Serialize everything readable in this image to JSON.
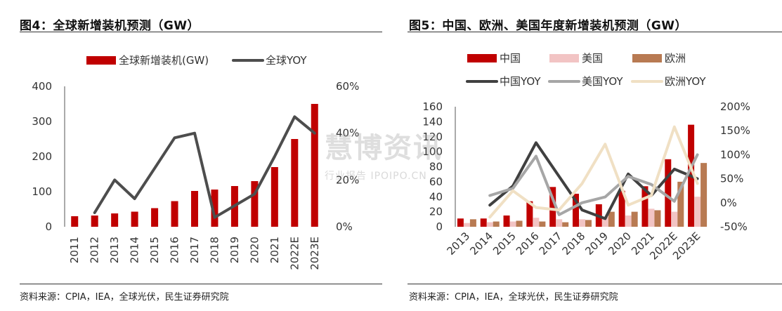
{
  "figure4": {
    "title": "图4：全球新增装机预测（GW）",
    "source": "资料来源：CPIA，IEA，全球光伏，民生证券研究院"
  },
  "figure5": {
    "title": "图5：中国、欧洲、美国年度新增装机预测（GW）",
    "source": "资料来源：CPIA，IEA，全球光伏，民生证券研究院"
  },
  "watermark": {
    "main": "慧博资讯",
    "sub": "行业报告 IPOIPO.CN"
  },
  "chart_data": [
    {
      "type": "bar+line",
      "categories": [
        "2011",
        "2012",
        "2013",
        "2014",
        "2015",
        "2016",
        "2017",
        "2018",
        "2019",
        "2020",
        "2021",
        "2022E",
        "2023E"
      ],
      "series": [
        {
          "name": "全球新增装机(GW)",
          "type": "bar",
          "axis": "left",
          "color": "#c00000",
          "values": [
            30,
            32,
            38,
            43,
            53,
            73,
            102,
            106,
            116,
            130,
            170,
            250,
            350
          ]
        },
        {
          "name": "全球YOY",
          "type": "line",
          "axis": "right",
          "color": "#4d4d4d",
          "values": [
            null,
            6,
            20,
            12,
            25,
            38,
            40,
            4,
            9,
            14,
            30,
            47,
            40
          ]
        }
      ],
      "ylim": [
        0,
        400
      ],
      "yticks": [
        "0",
        "100",
        "200",
        "300",
        "400"
      ],
      "y2lim": [
        0,
        60
      ],
      "y2ticks": [
        "0%",
        "20%",
        "40%",
        "60%"
      ],
      "legend_position": "top"
    },
    {
      "type": "bar+line",
      "categories": [
        "2013",
        "2014",
        "2015",
        "2016",
        "2017",
        "2018",
        "2019",
        "2020",
        "2021",
        "2022E",
        "2023E"
      ],
      "series": [
        {
          "name": "中国",
          "type": "bar",
          "axis": "left",
          "color": "#c00000",
          "values": [
            11,
            11,
            15,
            34,
            53,
            44,
            30,
            48,
            54,
            90,
            136
          ]
        },
        {
          "name": "美国",
          "type": "bar",
          "axis": "left",
          "color": "#f2c4c4",
          "values": [
            5,
            6,
            7,
            12,
            10,
            10,
            13,
            15,
            24,
            20,
            40
          ]
        },
        {
          "name": "欧洲",
          "type": "bar",
          "axis": "left",
          "color": "#b87a52",
          "values": [
            10,
            7,
            8,
            7,
            6,
            9,
            20,
            20,
            22,
            60,
            85
          ]
        },
        {
          "name": "中国YOY",
          "type": "line",
          "axis": "right",
          "color": "#404040",
          "values": [
            null,
            -5,
            35,
            125,
            55,
            -15,
            -33,
            60,
            15,
            70,
            50
          ]
        },
        {
          "name": "美国YOY",
          "type": "line",
          "axis": "right",
          "color": "#a6a6a6",
          "values": [
            null,
            15,
            30,
            97,
            -25,
            0,
            12,
            55,
            38,
            3,
            100
          ]
        },
        {
          "name": "欧洲YOY",
          "type": "line",
          "axis": "right",
          "color": "#f0e0c4",
          "values": [
            null,
            -30,
            25,
            -10,
            -15,
            40,
            122,
            -5,
            15,
            158,
            40
          ]
        }
      ],
      "ylim": [
        0,
        160
      ],
      "yticks": [
        "0",
        "20",
        "40",
        "60",
        "80",
        "100",
        "120",
        "140",
        "160"
      ],
      "y2lim": [
        -50,
        200
      ],
      "y2ticks": [
        "-50%",
        "0%",
        "50%",
        "100%",
        "150%",
        "200%"
      ],
      "legend_position": "top"
    }
  ]
}
